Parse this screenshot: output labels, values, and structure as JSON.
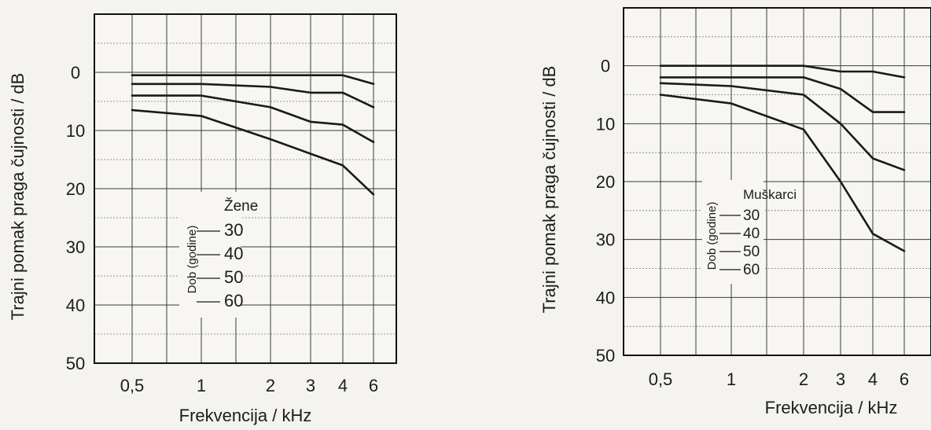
{
  "chart_data": [
    {
      "type": "line",
      "title": "",
      "xlabel": "Frekvencija / kHz",
      "ylabel": "Trajni pomak praga čujnosti / dB",
      "x_ticks": [
        "0,5",
        "1",
        "2",
        "3",
        "4",
        "6"
      ],
      "y_ticks": [
        "0",
        "10",
        "20",
        "30",
        "40",
        "50"
      ],
      "ylim": [
        50,
        -10
      ],
      "y_inverted": true,
      "x_scale": "log",
      "grid": true,
      "legend_title": "Žene",
      "legend_axis_label": "Dob (godine)",
      "legend_placement": "inside-left",
      "series": [
        {
          "name": "30",
          "points": [
            [
              0.5,
              0.5
            ],
            [
              1,
              0.5
            ],
            [
              2,
              0.5
            ],
            [
              3,
              0.5
            ],
            [
              4,
              0.5
            ],
            [
              6,
              2
            ]
          ]
        },
        {
          "name": "40",
          "points": [
            [
              0.5,
              2
            ],
            [
              1,
              2
            ],
            [
              2,
              2.5
            ],
            [
              3,
              3.5
            ],
            [
              4,
              3.5
            ],
            [
              6,
              6
            ]
          ]
        },
        {
          "name": "50",
          "points": [
            [
              0.5,
              4
            ],
            [
              1,
              4
            ],
            [
              2,
              6
            ],
            [
              3,
              8.5
            ],
            [
              4,
              9
            ],
            [
              6,
              12
            ]
          ]
        },
        {
          "name": "60",
          "points": [
            [
              0.5,
              6.5
            ],
            [
              1,
              7.5
            ],
            [
              2,
              11.5
            ],
            [
              3,
              14
            ],
            [
              4,
              16
            ],
            [
              6,
              21
            ]
          ]
        }
      ]
    },
    {
      "type": "line",
      "title": "",
      "xlabel": "Frekvencija / kHz",
      "ylabel": "Trajni pomak praga čujnosti / dB",
      "x_ticks": [
        "0,5",
        "1",
        "2",
        "3",
        "4",
        "6"
      ],
      "y_ticks": [
        "0",
        "10",
        "20",
        "30",
        "40",
        "50"
      ],
      "ylim": [
        50,
        -10
      ],
      "y_inverted": true,
      "x_scale": "log",
      "grid": true,
      "legend_title": "Muškarci",
      "legend_axis_label": "Dob (godine)",
      "legend_placement": "inside-left",
      "series": [
        {
          "name": "30",
          "points": [
            [
              0.5,
              0
            ],
            [
              1,
              0
            ],
            [
              2,
              0
            ],
            [
              3,
              1
            ],
            [
              4,
              1
            ],
            [
              6,
              2
            ]
          ]
        },
        {
          "name": "40",
          "points": [
            [
              0.5,
              2
            ],
            [
              1,
              2
            ],
            [
              2,
              2
            ],
            [
              3,
              4
            ],
            [
              4,
              8
            ],
            [
              6,
              8
            ]
          ]
        },
        {
          "name": "50",
          "points": [
            [
              0.5,
              3
            ],
            [
              1,
              3.5
            ],
            [
              2,
              5
            ],
            [
              3,
              10
            ],
            [
              4,
              16
            ],
            [
              6,
              18
            ]
          ]
        },
        {
          "name": "60",
          "points": [
            [
              0.5,
              5
            ],
            [
              1,
              6.5
            ],
            [
              2,
              11
            ],
            [
              3,
              20
            ],
            [
              4,
              29
            ],
            [
              6,
              32
            ]
          ]
        }
      ]
    }
  ]
}
